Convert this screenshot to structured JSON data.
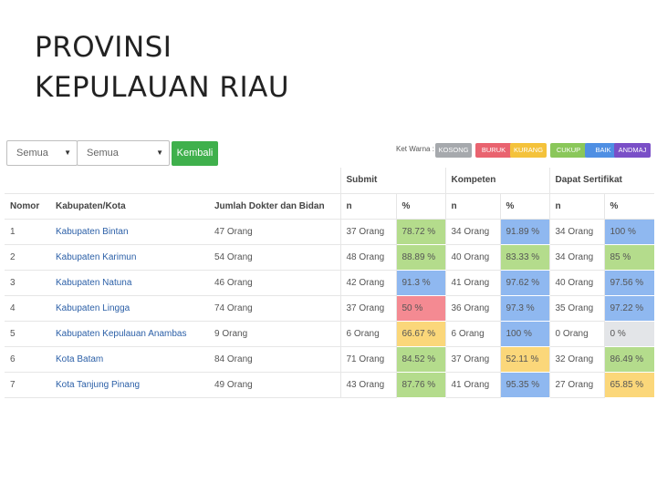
{
  "slide": {
    "title_line1": "PROVINSI",
    "title_line2": "KEPULAUAN RIAU"
  },
  "toolbar": {
    "select1": "Semua",
    "select2": "Semua",
    "back_button": "Kembali",
    "legend_label": "Ket Warna :",
    "legend": [
      {
        "label": "KOSONG",
        "color": "#a6a9ad"
      },
      {
        "label": "BURUK",
        "color": "#e9636f"
      },
      {
        "label": "KURANG",
        "color": "#f4c23b"
      },
      {
        "label": "CUKUP",
        "color": "#8ac75a"
      },
      {
        "label": "BAIK",
        "color": "#4f8fe3"
      },
      {
        "label": "ANDMAJ",
        "color": "#7a4fc7"
      }
    ]
  },
  "table": {
    "group_headers": {
      "submit": "Submit",
      "kompeten": "Kompeten",
      "sertifikat": "Dapat Sertifikat"
    },
    "headers": {
      "nomor": "Nomor",
      "kab": "Kabupaten/Kota",
      "jumlah": "Jumlah Dokter dan Bidan",
      "n": "n",
      "pct": "%"
    },
    "colors": {
      "CUKUP": "#b4dc8c",
      "BAIK": "#8fb8f0",
      "KURANG": "#fbd77a",
      "BURUK": "#f48a92",
      "KOSONG": "#e3e5e8"
    },
    "rows": [
      {
        "no": "1",
        "kab": "Kabupaten Bintan",
        "jumlah": "47 Orang",
        "sub_n": "37 Orang",
        "sub_pct": "78.72 %",
        "sub_c": "CUKUP",
        "kom_n": "34 Orang",
        "kom_pct": "91.89 %",
        "kom_c": "BAIK",
        "ser_n": "34 Orang",
        "ser_pct": "100 %",
        "ser_c": "BAIK"
      },
      {
        "no": "2",
        "kab": "Kabupaten Karimun",
        "jumlah": "54 Orang",
        "sub_n": "48 Orang",
        "sub_pct": "88.89 %",
        "sub_c": "CUKUP",
        "kom_n": "40 Orang",
        "kom_pct": "83.33 %",
        "kom_c": "CUKUP",
        "ser_n": "34 Orang",
        "ser_pct": "85 %",
        "ser_c": "CUKUP"
      },
      {
        "no": "3",
        "kab": "Kabupaten Natuna",
        "jumlah": "46 Orang",
        "sub_n": "42 Orang",
        "sub_pct": "91.3 %",
        "sub_c": "BAIK",
        "kom_n": "41 Orang",
        "kom_pct": "97.62 %",
        "kom_c": "BAIK",
        "ser_n": "40 Orang",
        "ser_pct": "97.56 %",
        "ser_c": "BAIK"
      },
      {
        "no": "4",
        "kab": "Kabupaten Lingga",
        "jumlah": "74 Orang",
        "sub_n": "37 Orang",
        "sub_pct": "50 %",
        "sub_c": "BURUK",
        "kom_n": "36 Orang",
        "kom_pct": "97.3 %",
        "kom_c": "BAIK",
        "ser_n": "35 Orang",
        "ser_pct": "97.22 %",
        "ser_c": "BAIK"
      },
      {
        "no": "5",
        "kab": "Kabupaten Kepulauan Anambas",
        "jumlah": "9 Orang",
        "sub_n": "6 Orang",
        "sub_pct": "66.67 %",
        "sub_c": "KURANG",
        "kom_n": "6 Orang",
        "kom_pct": "100 %",
        "kom_c": "BAIK",
        "ser_n": "0 Orang",
        "ser_pct": "0 %",
        "ser_c": "KOSONG"
      },
      {
        "no": "6",
        "kab": "Kota Batam",
        "jumlah": "84 Orang",
        "sub_n": "71 Orang",
        "sub_pct": "84.52 %",
        "sub_c": "CUKUP",
        "kom_n": "37 Orang",
        "kom_pct": "52.11 %",
        "kom_c": "KURANG",
        "ser_n": "32 Orang",
        "ser_pct": "86.49 %",
        "ser_c": "CUKUP"
      },
      {
        "no": "7",
        "kab": "Kota Tanjung Pinang",
        "jumlah": "49 Orang",
        "sub_n": "43 Orang",
        "sub_pct": "87.76 %",
        "sub_c": "CUKUP",
        "kom_n": "41 Orang",
        "kom_pct": "95.35 %",
        "kom_c": "BAIK",
        "ser_n": "27 Orang",
        "ser_pct": "65.85 %",
        "ser_c": "KURANG"
      }
    ]
  }
}
